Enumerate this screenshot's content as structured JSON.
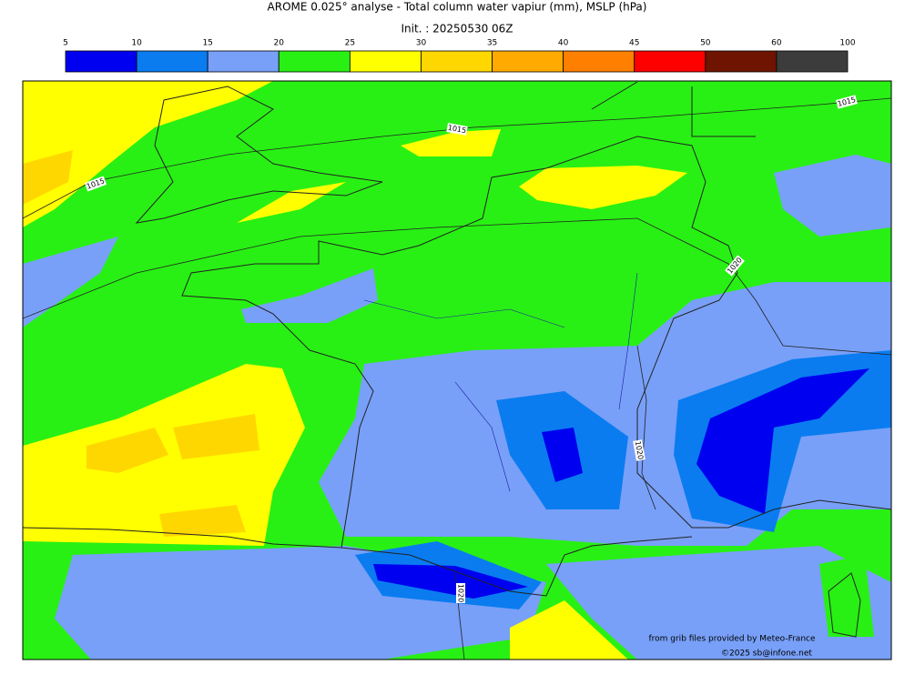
{
  "title": "AROME 0.025° analyse - Total column water vapiur (mm), MSLP (hPa)",
  "subtitle": "Init. : 20250530 06Z",
  "colorbar": {
    "bounds": [
      5,
      10,
      15,
      20,
      25,
      30,
      35,
      40,
      45,
      50,
      60,
      100
    ],
    "colors": [
      "#0000f0",
      "#0a7cf0",
      "#78a0f8",
      "#28f014",
      "#ffff00",
      "#ffd700",
      "#ffaa00",
      "#ff7f00",
      "#ff0000",
      "#6e1400",
      "#3c3c3c"
    ]
  },
  "isobar_labels": [
    "1015",
    "1015",
    "1015",
    "1020",
    "1020",
    "1020"
  ],
  "credits": [
    "from grib files provided by Meteo-France",
    "©2025 sb@infone.net"
  ]
}
